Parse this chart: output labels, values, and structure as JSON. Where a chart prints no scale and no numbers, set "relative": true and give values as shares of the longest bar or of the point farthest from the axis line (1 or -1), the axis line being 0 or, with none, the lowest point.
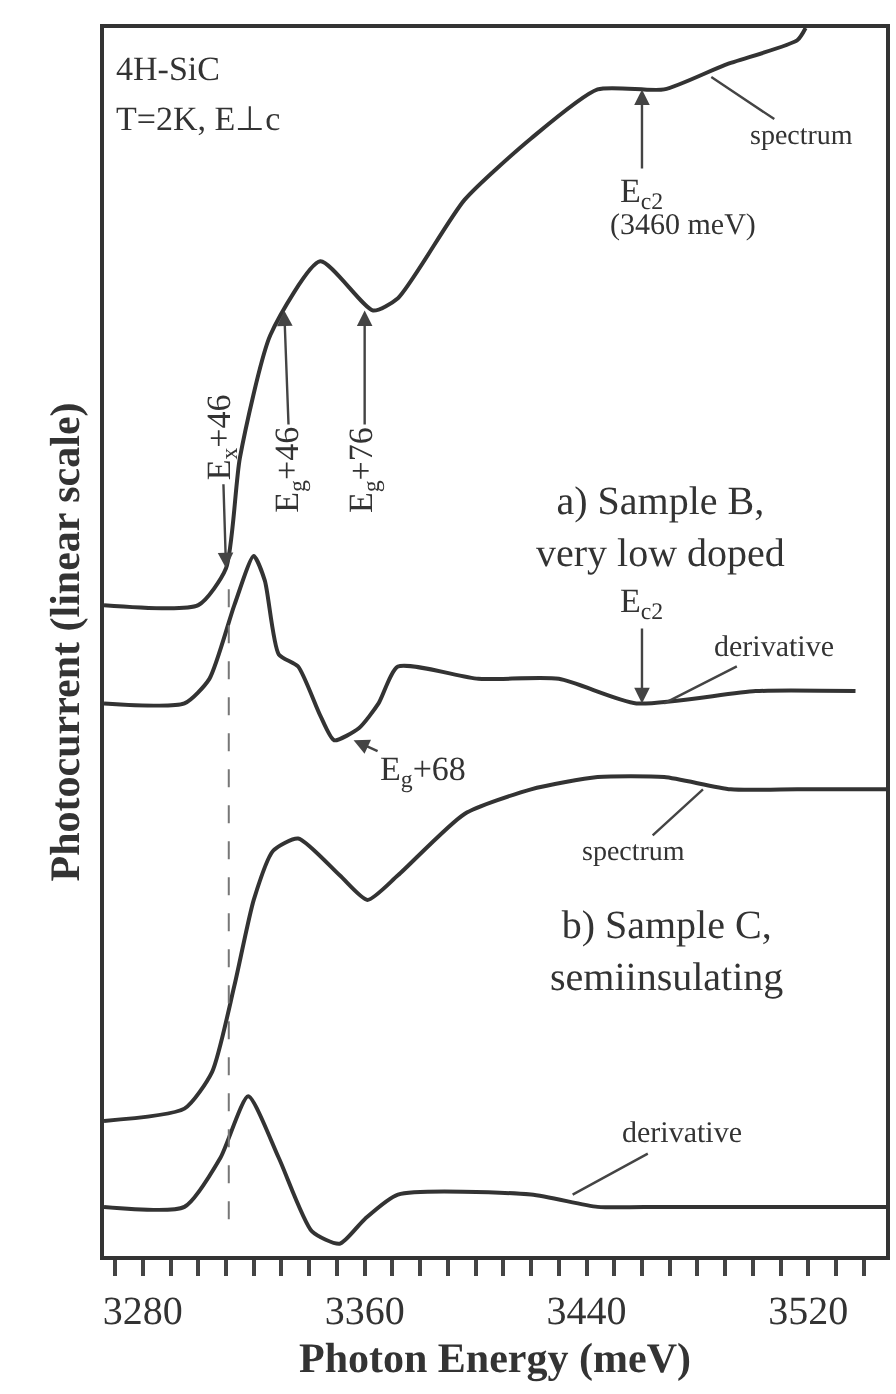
{
  "chart_data": {
    "type": "line",
    "relative": true,
    "xlabel": "Photon Energy (meV)",
    "ylabel": "Photocurrent (linear scale)",
    "xlim": [
      3266,
      3548
    ],
    "xticks": [
      {
        "value": 3270,
        "label": null
      },
      3280,
      {
        "value": 3290,
        "label": null
      },
      {
        "value": 3300,
        "label": null
      },
      {
        "value": 3310,
        "label": null
      },
      {
        "value": 3320,
        "label": null
      },
      {
        "value": 3330,
        "label": null
      },
      {
        "value": 3340,
        "label": null
      },
      {
        "value": 3350,
        "label": null
      },
      3360,
      {
        "value": 3370,
        "label": null
      },
      {
        "value": 3380,
        "label": null
      },
      {
        "value": 3390,
        "label": null
      },
      {
        "value": 3400,
        "label": null
      },
      {
        "value": 3410,
        "label": null
      },
      {
        "value": 3420,
        "label": null
      },
      {
        "value": 3430,
        "label": null
      },
      3440,
      {
        "value": 3450,
        "label": null
      },
      {
        "value": 3460,
        "label": null
      },
      {
        "value": 3470,
        "label": null
      },
      {
        "value": 3480,
        "label": null
      },
      {
        "value": 3490,
        "label": null
      },
      {
        "value": 3500,
        "label": null
      },
      {
        "value": 3510,
        "label": null
      },
      3520,
      {
        "value": 3530,
        "label": null
      },
      {
        "value": 3540,
        "label": null
      }
    ],
    "marker": "none",
    "line_style": "solid",
    "series": [
      {
        "color": "#333333",
        "x": [
          3266,
          3300,
          3310,
          3315,
          3326,
          3344,
          3363,
          3372,
          3396,
          3420,
          3444,
          3468,
          3490,
          3516,
          3519
        ],
        "values": [
          0.53,
          0.53,
          0.56,
          0.65,
          0.75,
          0.81,
          0.77,
          0.78,
          0.86,
          0.91,
          0.95,
          0.95,
          0.97,
          0.99,
          1
        ]
      },
      {
        "color": "#333333",
        "x": [
          3266,
          3295,
          3304,
          3313,
          3320,
          3324,
          3329,
          3336,
          3344,
          3349,
          3358,
          3365,
          3372,
          3401,
          3430,
          3458,
          3501,
          3537
        ],
        "values": [
          0.45,
          0.45,
          0.47,
          0.53,
          0.57,
          0.55,
          0.49,
          0.48,
          0.44,
          0.42,
          0.43,
          0.45,
          0.48,
          0.47,
          0.47,
          0.45,
          0.46,
          0.46
        ]
      },
      {
        "color": "#333333",
        "x": [
          3266,
          3295,
          3305,
          3313,
          3320,
          3327,
          3336,
          3351,
          3361,
          3372,
          3396,
          3420,
          3444,
          3468,
          3492,
          3516,
          3548
        ],
        "values": [
          0.11,
          0.12,
          0.15,
          0.22,
          0.29,
          0.33,
          0.34,
          0.31,
          0.29,
          0.31,
          0.36,
          0.38,
          0.39,
          0.39,
          0.38,
          0.38,
          0.38
        ]
      },
      {
        "color": "#333333",
        "x": [
          3266,
          3295,
          3308,
          3318,
          3329,
          3341,
          3351,
          3360,
          3372,
          3420,
          3444,
          3468,
          3548
        ],
        "values": [
          0.04,
          0.04,
          0.08,
          0.13,
          0.08,
          0.02,
          0.01,
          0.03,
          0.05,
          0.05,
          0.04,
          0.04,
          0.04
        ]
      }
    ],
    "ref_lines": [
      {
        "axis": "x",
        "value": 3311,
        "line_style": "dashed",
        "color": "#777777"
      }
    ],
    "annotations": [
      "4H-SiC",
      "T=2K, E⊥c",
      {
        "text": "spectrum",
        "x": 3485,
        "y": 0.96
      },
      {
        "text": "E$_{c2}$",
        "x": 3460,
        "y": 0.95
      },
      "(3460 meV)",
      {
        "text": "E$_{x}$+46",
        "x": 3310,
        "y": 0.56
      },
      {
        "text": "E$_{g}$+46",
        "x": 3331,
        "y": 0.77
      },
      {
        "text": "E$_{g}$+76",
        "x": 3360,
        "y": 0.77
      },
      "a) Sample B,\nvery low doped",
      {
        "text": "E$_{c2}$",
        "x": 3460,
        "y": 0.45
      },
      {
        "text": "derivative",
        "x": 3468,
        "y": 0.45
      },
      {
        "text": "E$_{g}$+68",
        "x": 3356,
        "y": 0.42
      },
      {
        "text": "spectrum",
        "x": 3482,
        "y": 0.38
      },
      "b) Sample C,\nsemiinsulating",
      {
        "text": "derivative",
        "x": 3435,
        "y": 0.05
      }
    ]
  }
}
